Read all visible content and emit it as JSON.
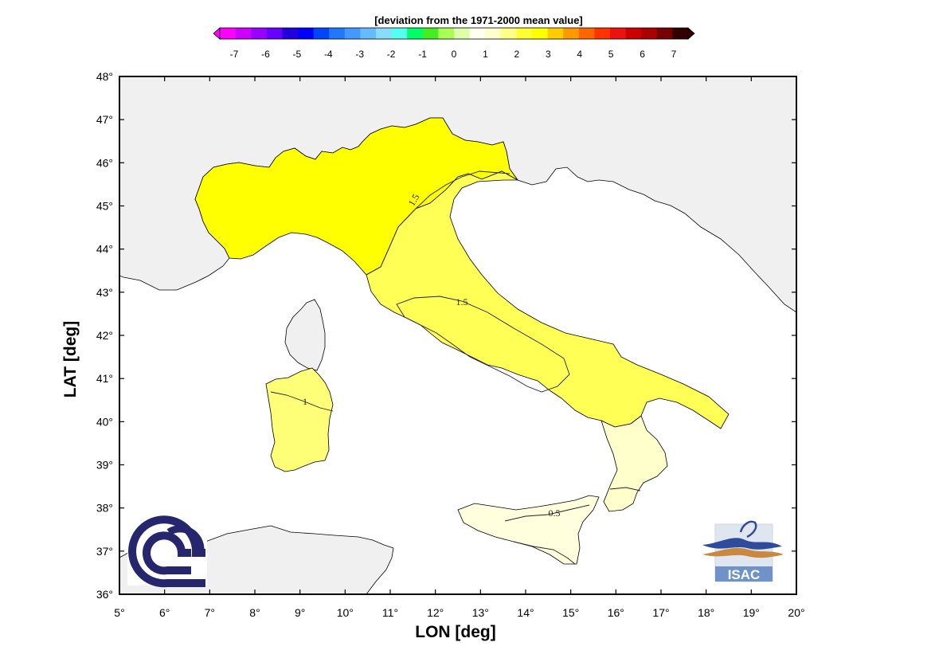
{
  "colorbar": {
    "title": "[deviation from the 1971-2000 mean value]",
    "ticks": [
      {
        "label": "-7",
        "v": -7
      },
      {
        "label": "-6",
        "v": -6
      },
      {
        "label": "-5",
        "v": -5
      },
      {
        "label": "-4",
        "v": -4
      },
      {
        "label": "-3",
        "v": -3
      },
      {
        "label": "-2",
        "v": -2
      },
      {
        "label": "-1",
        "v": -1
      },
      {
        "label": "0",
        "v": 0
      },
      {
        "label": "1",
        "v": 1
      },
      {
        "label": "2",
        "v": 2
      },
      {
        "label": "3",
        "v": 3
      },
      {
        "label": "4",
        "v": 4
      },
      {
        "label": "5",
        "v": 5
      },
      {
        "label": "6",
        "v": 6
      },
      {
        "label": "7",
        "v": 7
      }
    ],
    "colors": [
      "#ff00ff",
      "#cc00ff",
      "#9900ff",
      "#6600ff",
      "#2200dd",
      "#0000ff",
      "#0044ff",
      "#2277ff",
      "#4499ff",
      "#66bbff",
      "#88ddff",
      "#55ffee",
      "#00ff66",
      "#44ee22",
      "#aaff55",
      "#ddffaa",
      "#ffffee",
      "#ffffcc",
      "#ffff88",
      "#ffff33",
      "#ffff00",
      "#ffcc00",
      "#ff9900",
      "#ff6600",
      "#ff3300",
      "#ee1111",
      "#cc0000",
      "#aa0000",
      "#770000",
      "#330000"
    ]
  },
  "map": {
    "xlabel": "LON [deg]",
    "ylabel": "LAT [deg]",
    "lon_range": [
      5,
      20
    ],
    "lat_range": [
      36,
      48
    ],
    "lon_ticks": [
      "5°",
      "6°",
      "7°",
      "8°",
      "9°",
      "10°",
      "11°",
      "12°",
      "13°",
      "14°",
      "15°",
      "16°",
      "17°",
      "18°",
      "19°",
      "20°"
    ],
    "lat_ticks": [
      "36°",
      "37°",
      "38°",
      "39°",
      "40°",
      "41°",
      "42°",
      "43°",
      "44°",
      "45°",
      "46°",
      "47°",
      "48°"
    ],
    "contour_labels": [
      "1.5",
      "1.5",
      "1",
      "0.5"
    ],
    "colors": {
      "ocean": "#ffffff",
      "other_land": "#f0f0f0",
      "north_italy": "#ffff00",
      "central_italy": "#ffff55",
      "sardinia": "#ffff77",
      "calabria": "#ffffcc",
      "sicily": "#ffffdd"
    }
  },
  "logos": {
    "cnr": {
      "color": "#26266e"
    },
    "isac": {
      "text": "ISAC",
      "bg": "#6f93c9"
    }
  }
}
